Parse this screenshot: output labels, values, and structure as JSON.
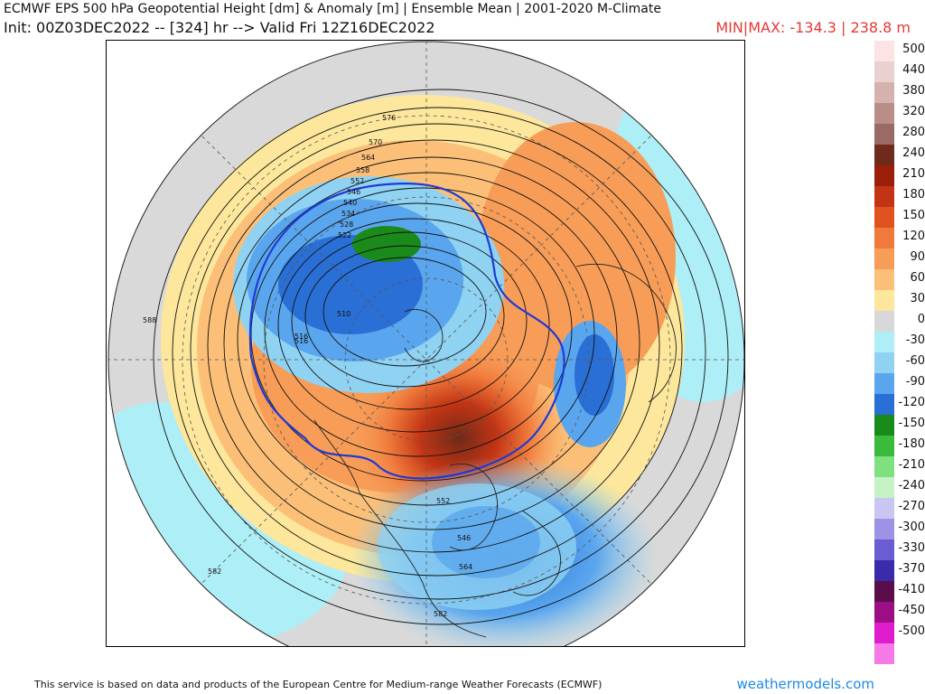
{
  "header": {
    "title": "ECMWF EPS 500 hPa Geopotential Height [dm] & Anomaly [m] | Ensemble Mean | 2001-2020 M-Climate",
    "subtitle": "Init: 00Z03DEC2022 -- [324] hr --> Valid Fri 12Z16DEC2022",
    "minmax": "MIN|MAX: -134.3 | 238.8 m"
  },
  "legend": {
    "items": [
      {
        "label": "500",
        "color": "#fde4e4"
      },
      {
        "label": "440",
        "color": "#ead1cf"
      },
      {
        "label": "380",
        "color": "#d6b2ae"
      },
      {
        "label": "320",
        "color": "#b98d88"
      },
      {
        "label": "280",
        "color": "#9a6a64"
      },
      {
        "label": "240",
        "color": "#6e2a1a"
      },
      {
        "label": "210",
        "color": "#9b1e0a"
      },
      {
        "label": "180",
        "color": "#c23414"
      },
      {
        "label": "150",
        "color": "#e2521e"
      },
      {
        "label": "120",
        "color": "#f07a3c"
      },
      {
        "label": "90",
        "color": "#f79d58"
      },
      {
        "label": "60",
        "color": "#fbbf78"
      },
      {
        "label": "30",
        "color": "#fde79c"
      },
      {
        "label": "0",
        "color": "#d8d8d8"
      },
      {
        "label": "-30",
        "color": "#aeeef6"
      },
      {
        "label": "-60",
        "color": "#8fd2f2"
      },
      {
        "label": "-90",
        "color": "#5aa6ee"
      },
      {
        "label": "-120",
        "color": "#2a6fd6"
      },
      {
        "label": "-150",
        "color": "#1a8a1a"
      },
      {
        "label": "-180",
        "color": "#3bbb3b"
      },
      {
        "label": "-210",
        "color": "#7ee07e"
      },
      {
        "label": "-240",
        "color": "#c6f2c6"
      },
      {
        "label": "-270",
        "color": "#c9c6f3"
      },
      {
        "label": "-300",
        "color": "#9c93e7"
      },
      {
        "label": "-330",
        "color": "#6a5cd2"
      },
      {
        "label": "-370",
        "color": "#3a2bab"
      },
      {
        "label": "-410",
        "color": "#5a0d4a"
      },
      {
        "label": "-450",
        "color": "#9c0f84"
      },
      {
        "label": "-500",
        "color": "#e01ccf"
      },
      {
        "label": "",
        "color": "#f57ae8"
      }
    ]
  },
  "map": {
    "contour_labels": [
      "576",
      "570",
      "564",
      "558",
      "552",
      "546",
      "540",
      "534",
      "528",
      "522",
      "516",
      "510",
      "516",
      "588",
      "582",
      "582",
      "552",
      "564",
      "546"
    ],
    "outline_color": "#1f3ad6",
    "ocean_color": "#d9d9d9"
  },
  "footer": {
    "credit": "This service is based on data and products of the European Centre for Medium-range Weather Forecasts (ECMWF)",
    "site": "weathermodels.com"
  }
}
